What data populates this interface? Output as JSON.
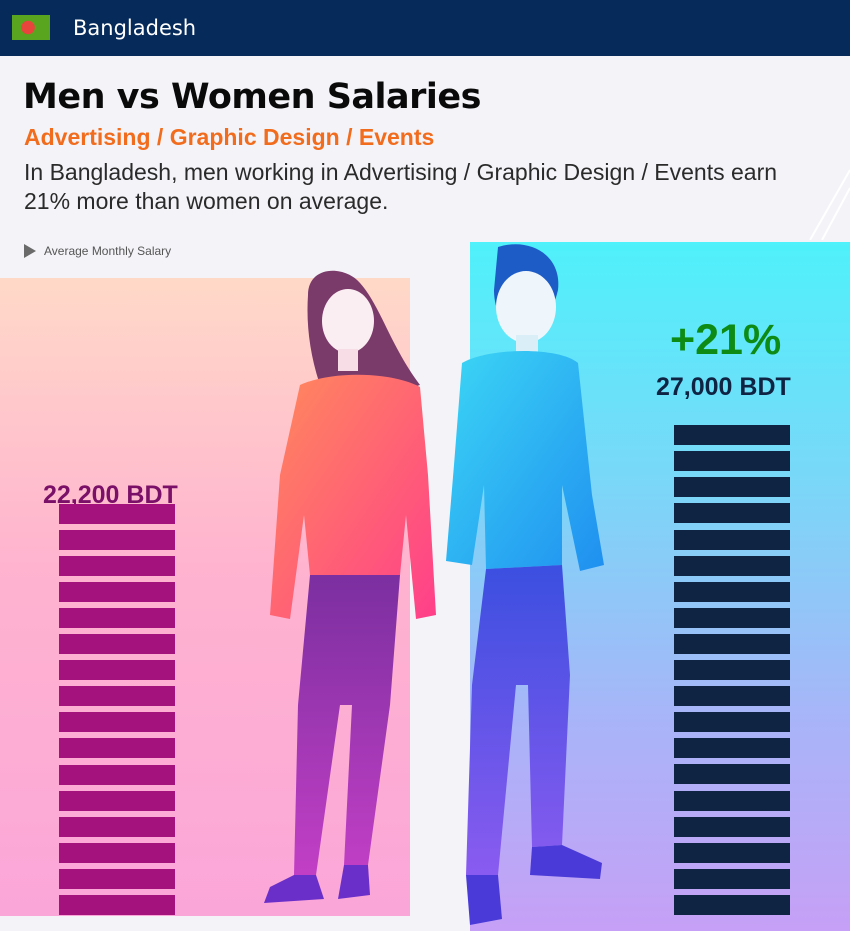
{
  "header": {
    "country": "Bangladesh",
    "flag_colors": {
      "field": "#5aa51f",
      "disc": "#e8453c"
    }
  },
  "title": "Men vs Women Salaries",
  "subtitle": "Advertising / Graphic Design / Events",
  "description": "In Bangladesh, men working in Advertising / Graphic Design / Events earn 21% more than women on average.",
  "legend": {
    "label": "Average Monthly Salary"
  },
  "chart_data": {
    "type": "bar",
    "categories": [
      "Women",
      "Men"
    ],
    "values": [
      22200,
      27000
    ],
    "unit": "BDT",
    "labels": [
      "22,200 BDT",
      "27,000 BDT"
    ],
    "difference_label": "+21%",
    "colors": {
      "women": "#a3127d",
      "men": "#0e2442",
      "difference": "#0d8b14"
    }
  }
}
